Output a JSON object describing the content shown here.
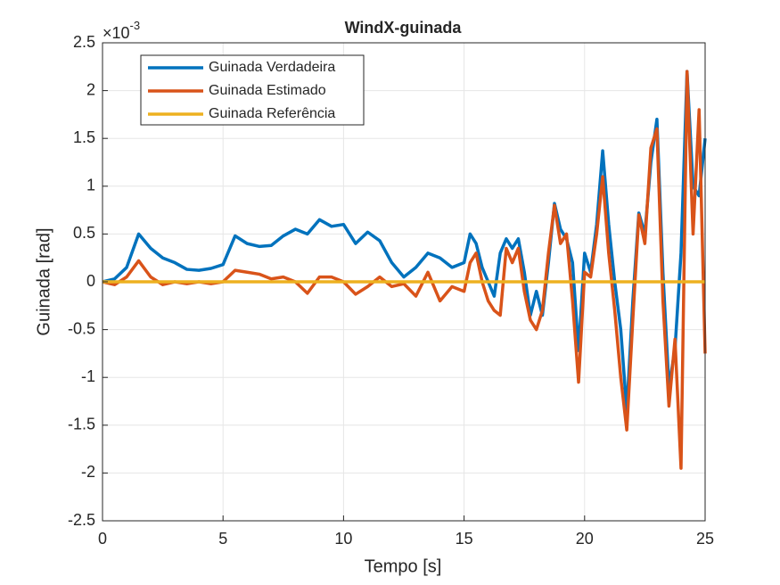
{
  "chart_data": {
    "type": "line",
    "title": "WindX-guinada",
    "x_label": "Tempo [s]",
    "y_label": "Guinada [rad]",
    "y_multiplier": {
      "base": "×10",
      "exponent": "-3"
    },
    "x": [
      0,
      0.5,
      1,
      1.5,
      2,
      2.5,
      3,
      3.5,
      4,
      4.5,
      5,
      5.5,
      6,
      6.5,
      7,
      7.5,
      8,
      8.5,
      9,
      9.5,
      10,
      10.5,
      11,
      11.5,
      12,
      12.5,
      13,
      13.5,
      14,
      14.5,
      15,
      15.25,
      15.5,
      15.75,
      16,
      16.25,
      16.5,
      16.75,
      17,
      17.25,
      17.5,
      17.75,
      18,
      18.25,
      18.5,
      18.75,
      19,
      19.25,
      19.5,
      19.75,
      20,
      20.25,
      20.5,
      20.75,
      21,
      21.25,
      21.5,
      21.75,
      22,
      22.25,
      22.5,
      22.75,
      23,
      23.25,
      23.5,
      23.75,
      24,
      24.25,
      24.5,
      24.75,
      25
    ],
    "series": [
      {
        "name": "Guinada Verdadeira",
        "color": "#0072BD",
        "values": [
          0,
          0.03,
          0.15,
          0.5,
          0.35,
          0.25,
          0.2,
          0.13,
          0.12,
          0.14,
          0.18,
          0.48,
          0.4,
          0.37,
          0.38,
          0.48,
          0.55,
          0.5,
          0.65,
          0.58,
          0.6,
          0.4,
          0.52,
          0.43,
          0.2,
          0.05,
          0.15,
          0.3,
          0.25,
          0.15,
          0.2,
          0.5,
          0.4,
          0.15,
          0.0,
          -0.15,
          0.3,
          0.45,
          0.35,
          0.45,
          0.1,
          -0.35,
          -0.1,
          -0.35,
          0.2,
          0.82,
          0.55,
          0.45,
          0.2,
          -0.72,
          0.3,
          0.1,
          0.6,
          1.37,
          0.6,
          0.0,
          -0.5,
          -1.35,
          -0.2,
          0.72,
          0.5,
          1.25,
          1.7,
          0.1,
          -1.1,
          -0.7,
          0.3,
          2.2,
          1.0,
          0.9,
          1.5
        ]
      },
      {
        "name": "Guinada Estimado",
        "color": "#D95319",
        "values": [
          0,
          -0.03,
          0.05,
          0.22,
          0.05,
          -0.03,
          0.0,
          -0.02,
          0.0,
          -0.02,
          0.0,
          0.12,
          0.1,
          0.08,
          0.03,
          0.05,
          0.0,
          -0.12,
          0.05,
          0.05,
          0.0,
          -0.13,
          -0.05,
          0.05,
          -0.05,
          -0.02,
          -0.15,
          0.1,
          -0.2,
          -0.05,
          -0.1,
          0.2,
          0.3,
          0.0,
          -0.2,
          -0.3,
          -0.35,
          0.35,
          0.2,
          0.35,
          -0.1,
          -0.4,
          -0.5,
          -0.3,
          0.3,
          0.8,
          0.4,
          0.5,
          -0.2,
          -1.05,
          0.1,
          0.05,
          0.5,
          1.1,
          0.3,
          -0.3,
          -1.0,
          -1.55,
          -0.4,
          0.7,
          0.4,
          1.4,
          1.6,
          -0.2,
          -1.3,
          -0.6,
          -1.95,
          2.2,
          0.5,
          1.8,
          -0.75
        ]
      },
      {
        "name": "Guinada Referência",
        "color": "#EDB120",
        "values": [
          0,
          0,
          0,
          0,
          0,
          0,
          0,
          0,
          0,
          0,
          0,
          0,
          0,
          0,
          0,
          0,
          0,
          0,
          0,
          0,
          0,
          0,
          0,
          0,
          0,
          0,
          0,
          0,
          0,
          0,
          0,
          0,
          0,
          0,
          0,
          0,
          0,
          0,
          0,
          0,
          0,
          0,
          0,
          0,
          0,
          0,
          0,
          0,
          0,
          0,
          0,
          0,
          0,
          0,
          0,
          0,
          0,
          0,
          0,
          0,
          0,
          0,
          0,
          0,
          0,
          0,
          0,
          0,
          0,
          0,
          0
        ]
      }
    ],
    "xlim": [
      0,
      25
    ],
    "xticks": [
      0,
      5,
      10,
      15,
      20,
      25
    ],
    "ylim": [
      -2.5,
      2.5
    ],
    "yticks": [
      -2.5,
      -2,
      -1.5,
      -1,
      -0.5,
      0,
      0.5,
      1,
      1.5,
      2,
      2.5
    ],
    "grid": true,
    "legend": "northwest"
  }
}
